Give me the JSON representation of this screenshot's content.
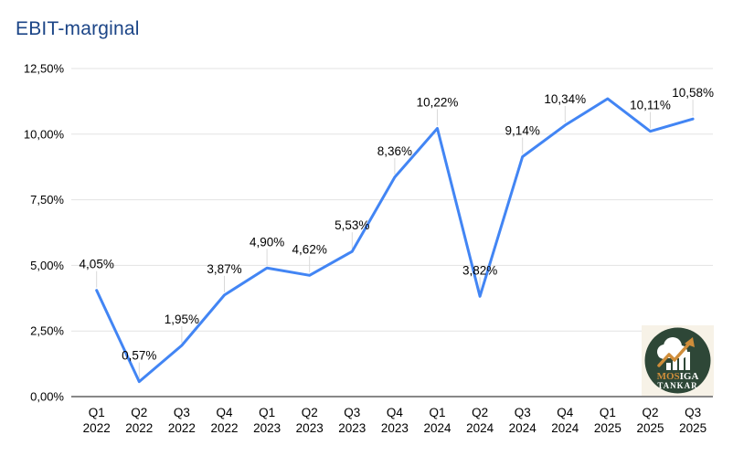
{
  "chart_data": {
    "type": "line",
    "title": "EBIT-marginal",
    "xlabel": "",
    "ylabel": "",
    "legend": "none",
    "grid": true,
    "categories": [
      "Q1 2022",
      "Q2 2022",
      "Q3 2022",
      "Q4 2022",
      "Q1 2023",
      "Q2 2023",
      "Q3 2023",
      "Q4 2023",
      "Q1 2024",
      "Q2 2024",
      "Q3 2024",
      "Q4 2024",
      "Q1 2025",
      "Q2 2025",
      "Q3 2025"
    ],
    "values": [
      4.05,
      0.57,
      1.95,
      3.87,
      4.9,
      4.62,
      5.53,
      8.36,
      10.22,
      3.82,
      9.14,
      10.34,
      11.35,
      10.11,
      10.58
    ],
    "point_labels": [
      "4,05%",
      "0,57%",
      "1,95%",
      "3,87%",
      "4,90%",
      "4,62%",
      "5,53%",
      "8,36%",
      "10,22%",
      "3,82%",
      "9,14%",
      "10,34%",
      "",
      "10,11%",
      "10,58%"
    ],
    "y_axis": {
      "range": [
        0,
        12.5
      ],
      "ticks": [
        {
          "value": 0,
          "label": "0,00%"
        },
        {
          "value": 2.5,
          "label": "2,50%"
        },
        {
          "value": 5,
          "label": "5,00%"
        },
        {
          "value": 7.5,
          "label": "7,50%"
        },
        {
          "value": 10,
          "label": "10,00%"
        },
        {
          "value": 12.5,
          "label": "12,50%"
        }
      ]
    },
    "colors": {
      "line": "#4285f4",
      "grid": "#e3e3e3",
      "axis": "#424242",
      "tick_text": "#000000",
      "point_label_text": "#000000",
      "leader": "#d9d9d9",
      "title": "#1c4587"
    }
  },
  "logo": {
    "word_accent": "MOS",
    "word_rest": "IGA",
    "line2": "TANKAR",
    "icons": [
      "cloud-icon",
      "bar-chart-icon",
      "growth-arrow-icon"
    ],
    "colors": {
      "background": "#f7f2e7",
      "circle": "#2e4737",
      "accent": "#cf8d3a",
      "text": "#ffffff"
    }
  }
}
